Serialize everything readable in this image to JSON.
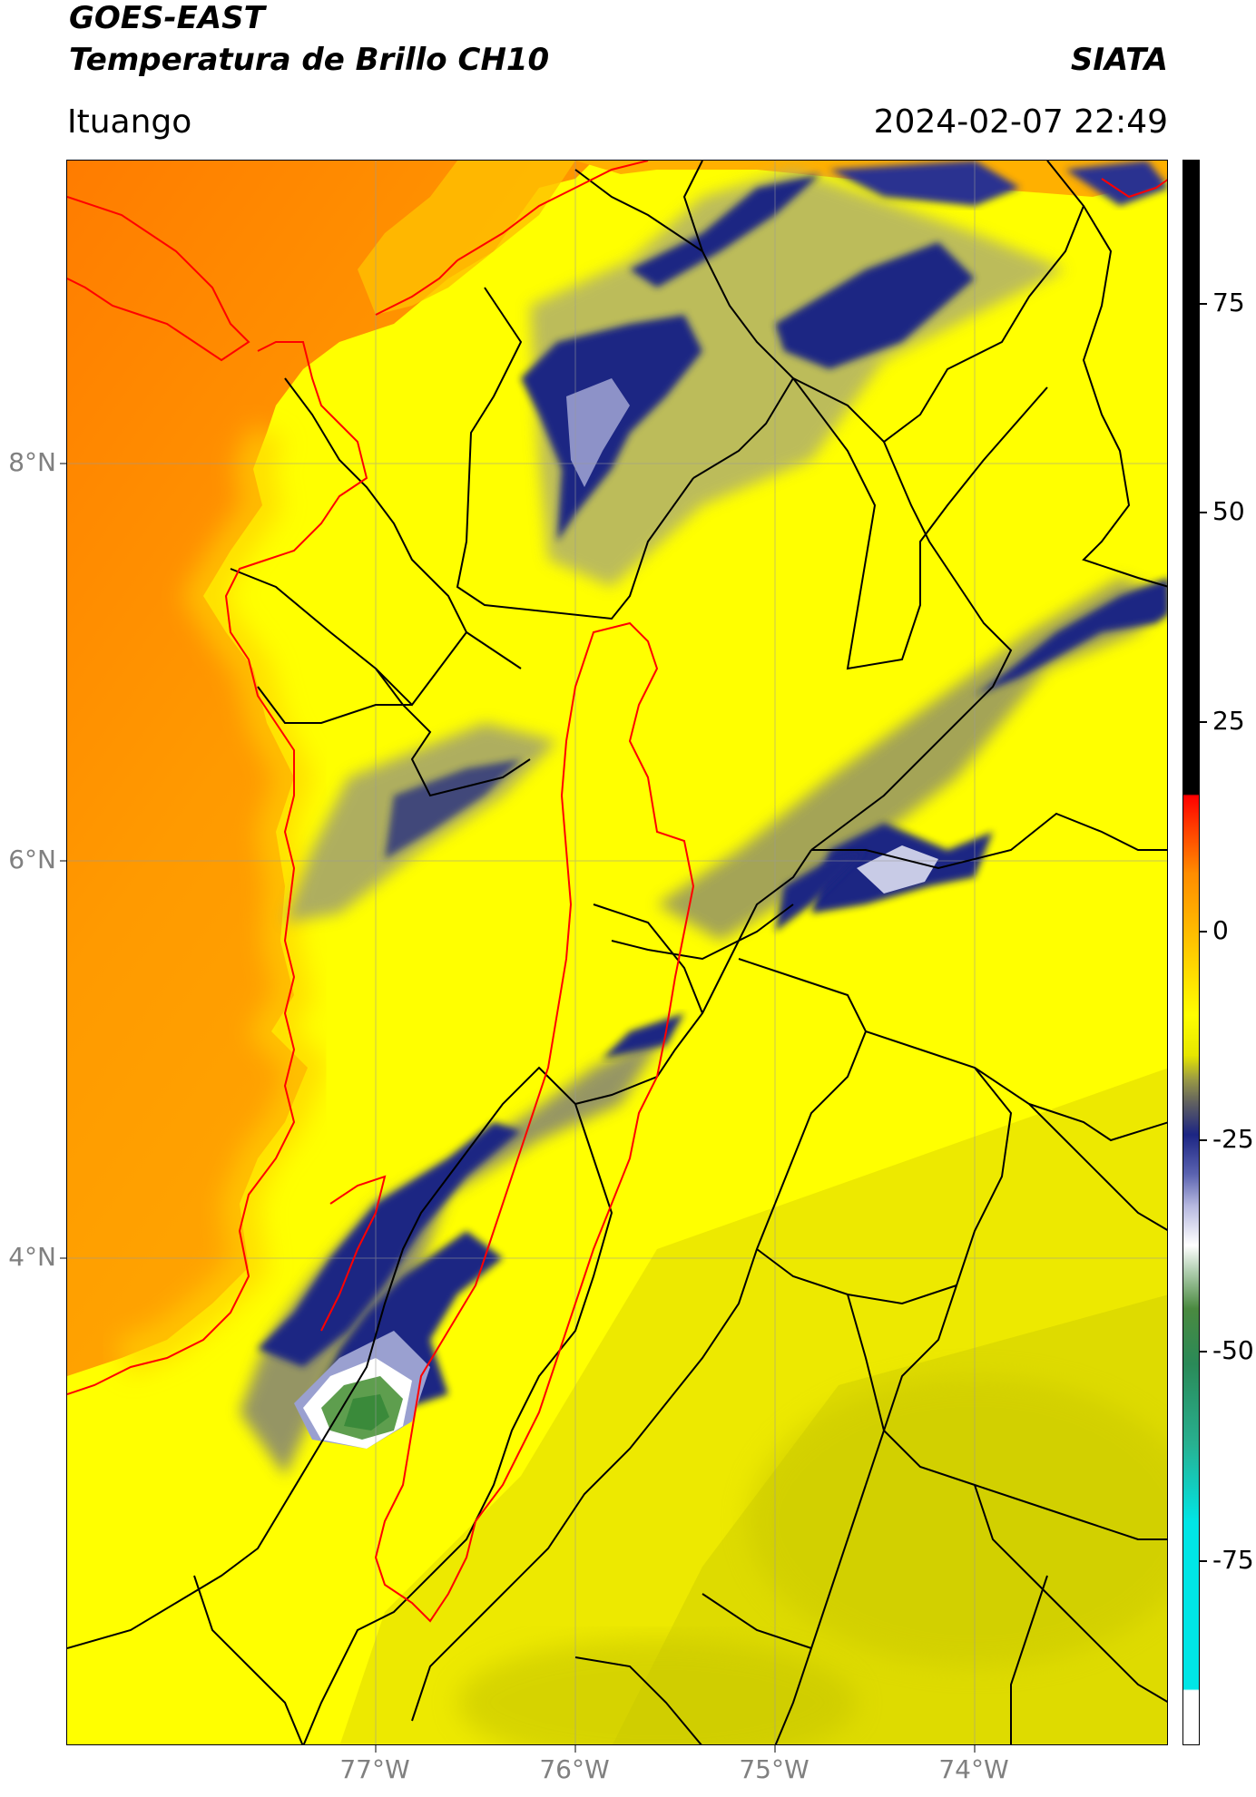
{
  "header": {
    "title_line1": "GOES-EAST",
    "title_line2": "Temperatura de Brillo CH10",
    "org": "SIATA",
    "location": "Ituango",
    "datetime": "2024-02-07 22:49"
  },
  "map": {
    "lat_labels": [
      "8°N",
      "6°N",
      "4°N"
    ],
    "lon_labels": [
      "77°W",
      "76°W",
      "75°W",
      "74°W"
    ],
    "colors": {
      "ocean": "#ff9a00",
      "land": "#ffff00",
      "cold_cloud": "#1c2583",
      "very_cold": "#ffffff",
      "coldest": "#3a8a3a",
      "boundary": "#000000",
      "highlight_region": "#ff0000"
    }
  },
  "colorbar": {
    "ticks": [
      "75",
      "50",
      "25",
      "0",
      "-25",
      "-50",
      "-75"
    ]
  }
}
